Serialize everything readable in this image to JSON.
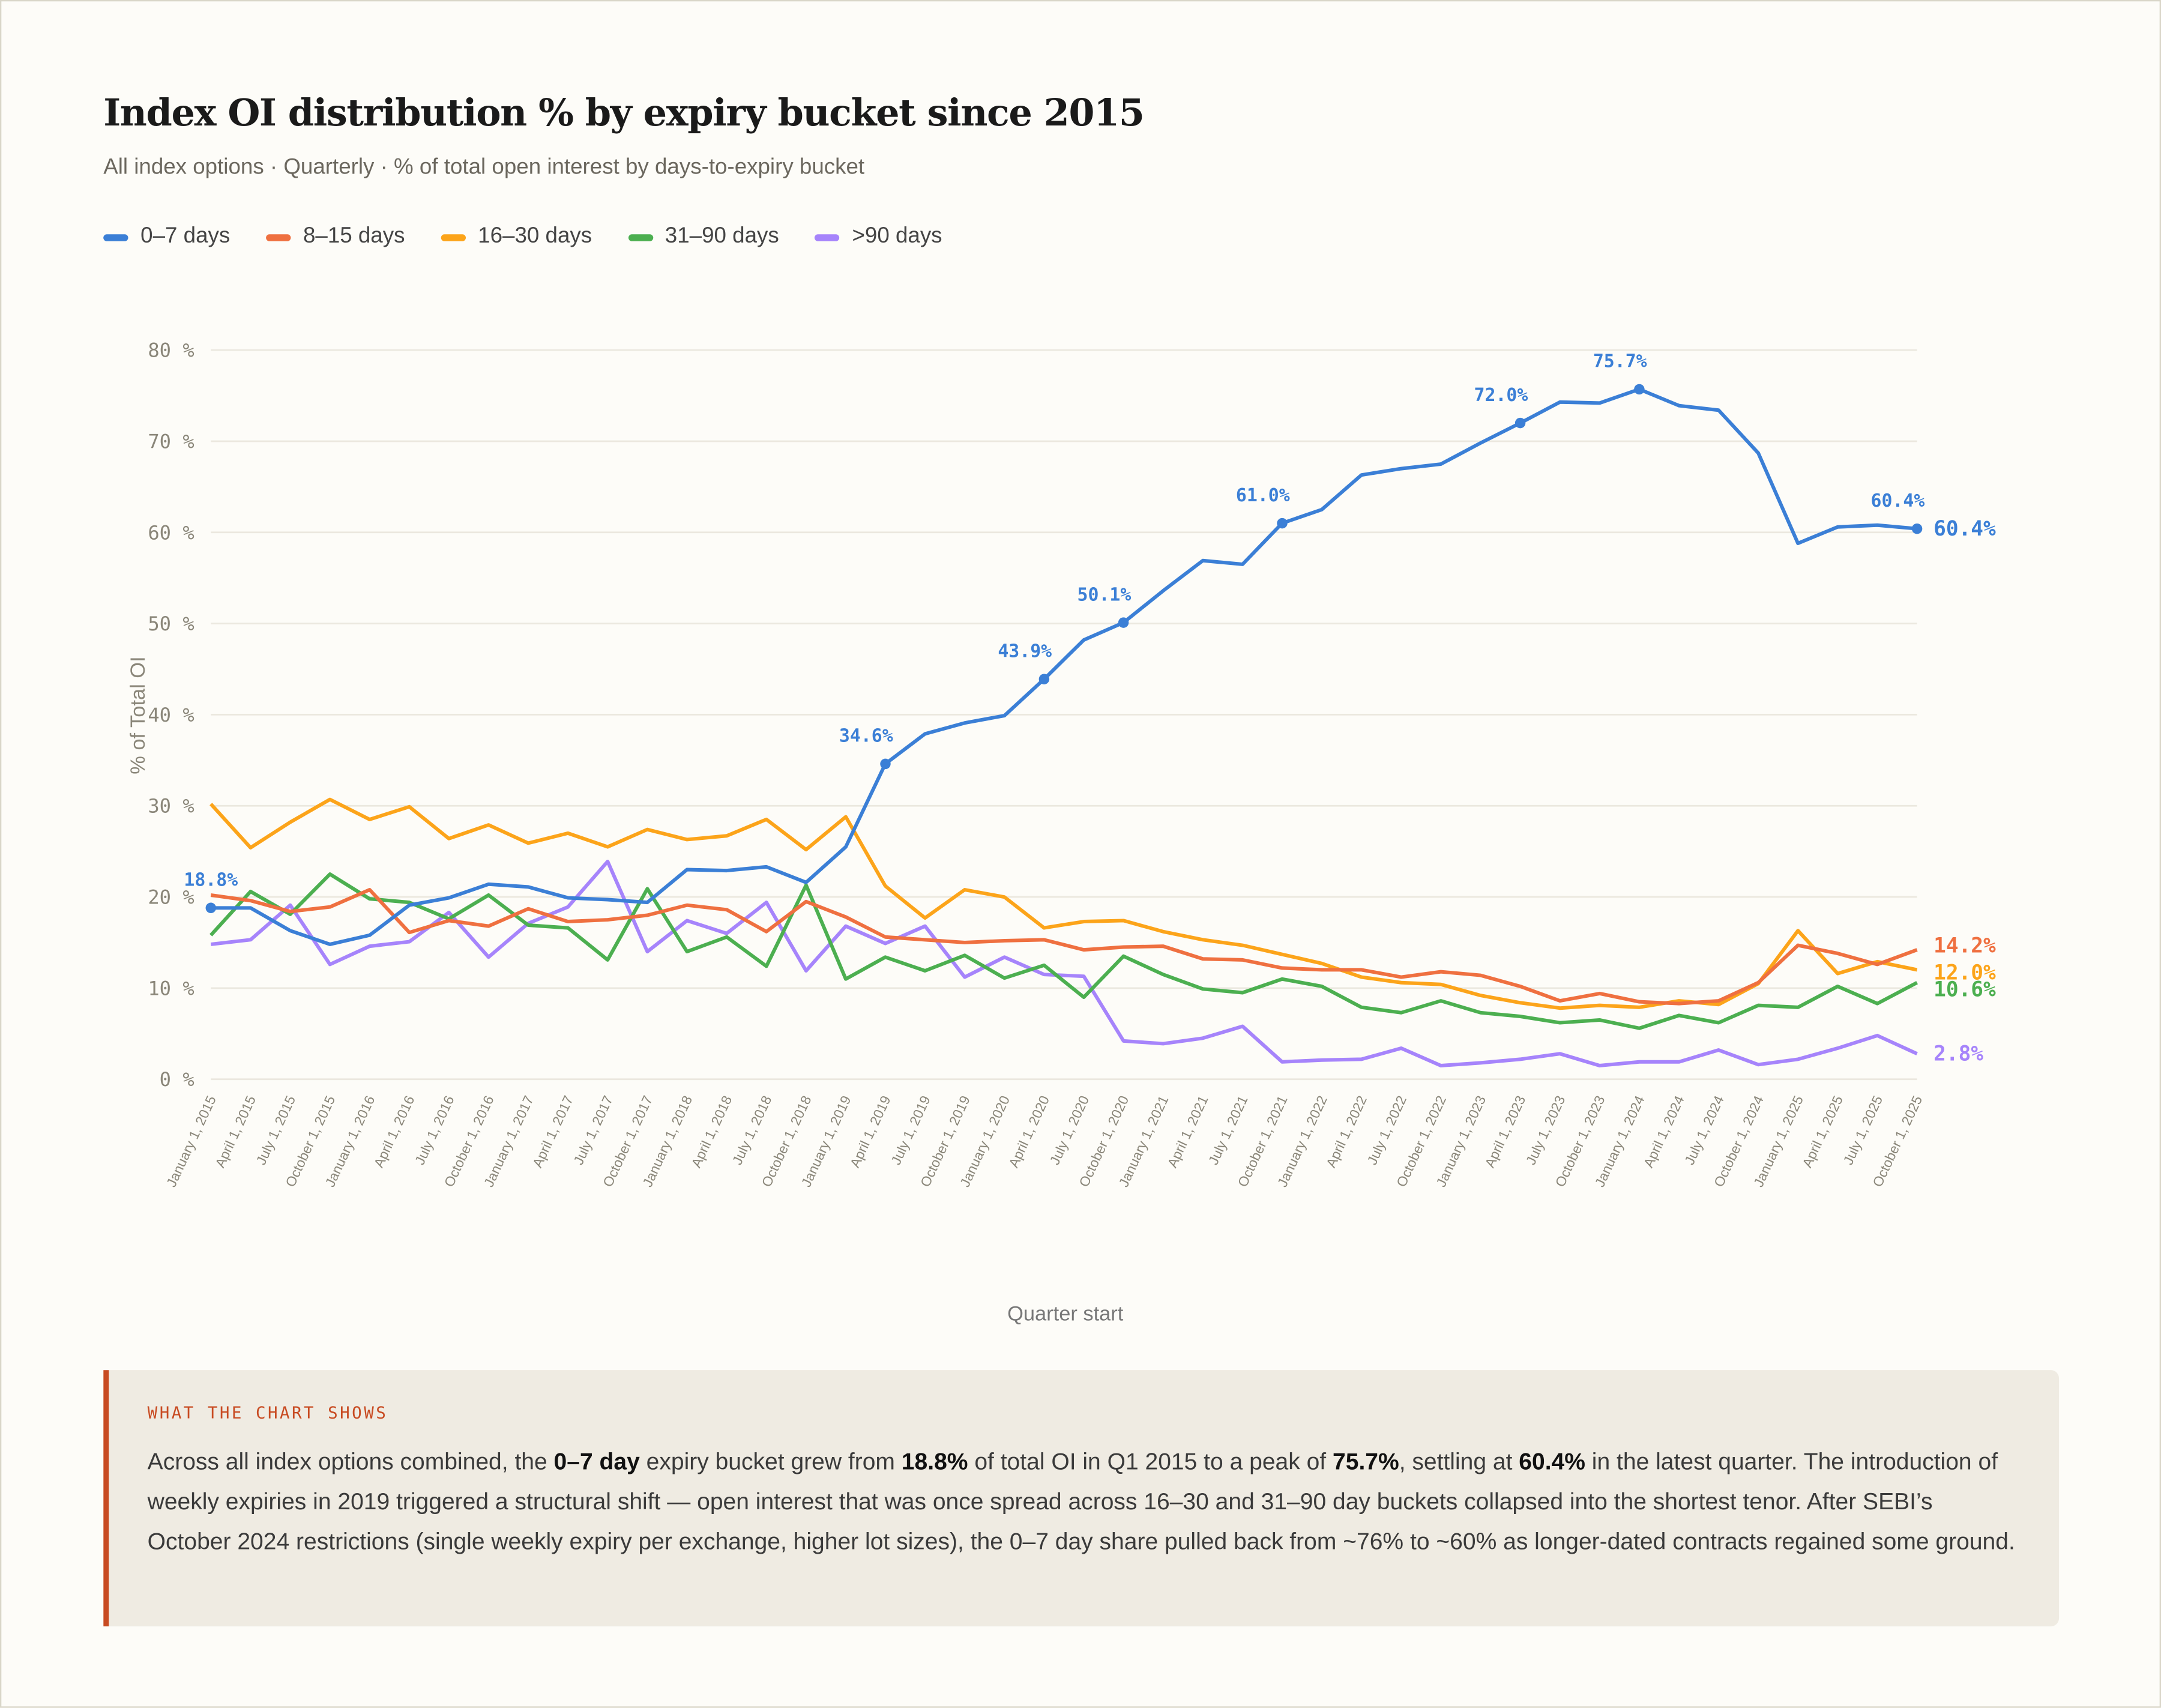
{
  "header": {
    "title": "Index OI distribution % by expiry bucket since 2015",
    "subtitle": "All index options · Quarterly · % of total open interest by days-to-expiry bucket"
  },
  "chart_data": {
    "type": "line",
    "title": "Index OI distribution % by expiry bucket since 2015",
    "xlabel": "Quarter start",
    "ylabel": "% of Total OI",
    "ylim": [
      0,
      80
    ],
    "yticks": [
      "0 %",
      "10 %",
      "20 %",
      "30 %",
      "40 %",
      "50 %",
      "60 %",
      "70 %",
      "80 %"
    ],
    "ytick_values": [
      0,
      10,
      20,
      30,
      40,
      50,
      60,
      70,
      80
    ],
    "grid": true,
    "legend_position": "top-left",
    "x": [
      "January 1, 2015",
      "April 1, 2015",
      "July 1, 2015",
      "October 1, 2015",
      "January 1, 2016",
      "April 1, 2016",
      "July 1, 2016",
      "October 1, 2016",
      "January 1, 2017",
      "April 1, 2017",
      "July 1, 2017",
      "October 1, 2017",
      "January 1, 2018",
      "April 1, 2018",
      "July 1, 2018",
      "October 1, 2018",
      "January 1, 2019",
      "April 1, 2019",
      "July 1, 2019",
      "October 1, 2019",
      "January 1, 2020",
      "April 1, 2020",
      "July 1, 2020",
      "October 1, 2020",
      "January 1, 2021",
      "April 1, 2021",
      "July 1, 2021",
      "October 1, 2021",
      "January 1, 2022",
      "April 1, 2022",
      "July 1, 2022",
      "October 1, 2022",
      "January 1, 2023",
      "April 1, 2023",
      "July 1, 2023",
      "October 1, 2023",
      "January 1, 2024",
      "April 1, 2024",
      "July 1, 2024",
      "October 1, 2024",
      "January 1, 2025",
      "April 1, 2025",
      "July 1, 2025",
      "October 1, 2025"
    ],
    "series": [
      {
        "name": "0–7 days",
        "color": "#3b7fd6",
        "values": [
          18.8,
          18.8,
          16.3,
          14.8,
          15.8,
          19.1,
          19.9,
          21.4,
          21.1,
          19.9,
          19.7,
          19.4,
          23.0,
          22.9,
          23.3,
          21.6,
          25.5,
          34.6,
          37.9,
          39.1,
          39.9,
          43.9,
          48.2,
          50.1,
          53.6,
          56.9,
          56.5,
          61.0,
          62.5,
          66.3,
          67.0,
          67.5,
          69.8,
          72.0,
          74.3,
          74.2,
          75.7,
          73.9,
          73.4,
          68.7,
          58.8,
          60.6,
          60.8,
          60.4
        ],
        "annotations": [
          {
            "index": 0,
            "label": "18.8%"
          },
          {
            "index": 17,
            "label": "34.6%"
          },
          {
            "index": 21,
            "label": "43.9%"
          },
          {
            "index": 23,
            "label": "50.1%"
          },
          {
            "index": 27,
            "label": "61.0%"
          },
          {
            "index": 33,
            "label": "72.0%"
          },
          {
            "index": 36,
            "label": "75.7%"
          },
          {
            "index": 43,
            "label": "60.4%"
          }
        ],
        "end_label": "60.4%"
      },
      {
        "name": "8–15 days",
        "color": "#ef7040",
        "values": [
          20.2,
          19.6,
          18.4,
          18.9,
          20.8,
          16.1,
          17.4,
          16.8,
          18.7,
          17.3,
          17.5,
          18.0,
          19.1,
          18.6,
          16.2,
          19.5,
          17.8,
          15.6,
          15.3,
          15.0,
          15.2,
          15.3,
          14.2,
          14.5,
          14.6,
          13.2,
          13.1,
          12.2,
          12.0,
          12.0,
          11.2,
          11.8,
          11.4,
          10.2,
          8.6,
          9.4,
          8.5,
          8.3,
          8.6,
          10.6,
          14.7,
          13.8,
          12.6,
          14.2
        ],
        "end_label": "14.2%"
      },
      {
        "name": "16–30 days",
        "color": "#fca41a",
        "values": [
          30.2,
          25.4,
          28.2,
          30.7,
          28.5,
          29.9,
          26.4,
          27.9,
          25.9,
          27.0,
          25.5,
          27.4,
          26.3,
          26.7,
          28.5,
          25.2,
          28.8,
          21.2,
          17.7,
          20.8,
          20.0,
          16.6,
          17.3,
          17.4,
          16.2,
          15.3,
          14.7,
          13.7,
          12.7,
          11.2,
          10.6,
          10.4,
          9.2,
          8.4,
          7.8,
          8.1,
          7.9,
          8.6,
          8.2,
          10.5,
          16.3,
          11.6,
          12.9,
          12.0
        ],
        "end_label": "12.0%"
      },
      {
        "name": "31–90 days",
        "color": "#4caf50",
        "values": [
          15.8,
          20.6,
          18.1,
          22.5,
          19.8,
          19.4,
          17.6,
          20.2,
          16.9,
          16.6,
          13.1,
          20.9,
          14.0,
          15.6,
          12.4,
          21.3,
          11.0,
          13.4,
          11.9,
          13.6,
          11.1,
          12.5,
          9.0,
          13.5,
          11.5,
          9.9,
          9.5,
          11.0,
          10.2,
          7.9,
          7.3,
          8.6,
          7.3,
          6.9,
          6.2,
          6.5,
          5.6,
          7.0,
          6.2,
          8.1,
          7.9,
          10.2,
          8.3,
          10.6
        ],
        "end_label": "10.6%"
      },
      {
        "name": ">90 days",
        "color": "#a684fb",
        "values": [
          14.8,
          15.3,
          19.1,
          12.6,
          14.6,
          15.1,
          18.3,
          13.4,
          17.1,
          18.9,
          23.9,
          14.0,
          17.4,
          16.0,
          19.4,
          11.9,
          16.8,
          14.9,
          16.8,
          11.2,
          13.4,
          11.5,
          11.3,
          4.2,
          3.9,
          4.5,
          5.8,
          1.9,
          2.1,
          2.2,
          3.4,
          1.5,
          1.8,
          2.2,
          2.8,
          1.5,
          1.9,
          1.9,
          3.2,
          1.6,
          2.2,
          3.4,
          4.8,
          2.8
        ],
        "end_label": "2.8%"
      }
    ]
  },
  "callout": {
    "label": "WHAT THE CHART SHOWS",
    "segments": [
      {
        "text": "Across all index options combined, the "
      },
      {
        "text": "0–7 day",
        "bold": true
      },
      {
        "text": " expiry bucket grew from "
      },
      {
        "text": "18.8%",
        "bold": true
      },
      {
        "text": " of total OI in Q1 2015 to a peak of "
      },
      {
        "text": "75.7%",
        "bold": true
      },
      {
        "text": ", settling at "
      },
      {
        "text": "60.4%",
        "bold": true
      },
      {
        "text": " in the latest quarter. The introduction of weekly expiries in 2019 triggered a structural shift — open interest that was once spread across 16–30 and 31–90 day buckets collapsed into the shortest tenor. After SEBI’s October 2024 restrictions (single weekly expiry per exchange, higher lot sizes), the 0–7 day share pulled back from ~76% to ~60% as longer-dated contracts regained some ground."
      }
    ]
  }
}
